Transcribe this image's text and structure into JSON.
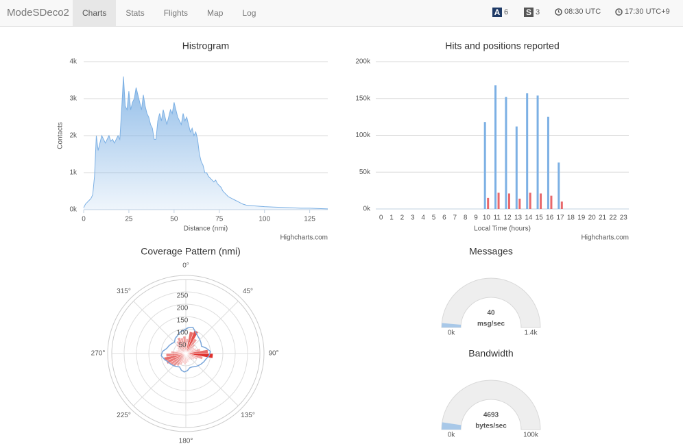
{
  "navbar": {
    "brand": "ModeSDeco2",
    "tabs": [
      "Charts",
      "Stats",
      "Flights",
      "Map",
      "Log"
    ],
    "status": [
      {
        "badge": "A",
        "count": "6"
      },
      {
        "badge": "S",
        "count": "3"
      }
    ],
    "clocks": [
      "08:30 UTC",
      "17:30 UTC+9"
    ]
  },
  "chart_data": [
    {
      "type": "area",
      "title": "Histrogram",
      "x_label": "Distance (nmi)",
      "y_label": "Contacts",
      "credits": "Highcharts.com",
      "color": "#7cb0e4",
      "x": [
        0,
        1,
        2,
        3,
        4,
        5,
        6,
        7,
        8,
        9,
        10,
        11,
        12,
        13,
        14,
        15,
        16,
        17,
        18,
        19,
        20,
        21,
        22,
        23,
        24,
        25,
        26,
        27,
        28,
        29,
        30,
        31,
        32,
        33,
        34,
        35,
        36,
        37,
        38,
        39,
        40,
        41,
        42,
        43,
        44,
        45,
        46,
        47,
        48,
        49,
        50,
        51,
        52,
        53,
        54,
        55,
        56,
        57,
        58,
        59,
        60,
        61,
        62,
        63,
        64,
        65,
        66,
        67,
        68,
        69,
        70,
        71,
        72,
        73,
        74,
        75,
        76,
        77,
        78,
        79,
        80,
        82,
        84,
        86,
        88,
        90,
        95,
        100,
        105,
        110,
        115,
        120,
        125,
        130,
        135
      ],
      "values": [
        50,
        150,
        200,
        250,
        300,
        400,
        900,
        2000,
        1600,
        1800,
        2000,
        1900,
        1800,
        1900,
        2000,
        1850,
        1900,
        1800,
        1900,
        2000,
        1900,
        2700,
        3600,
        2800,
        2700,
        3200,
        2700,
        2900,
        3000,
        3300,
        3100,
        2900,
        2700,
        3100,
        2800,
        2600,
        2500,
        2300,
        2200,
        1900,
        1900,
        2400,
        2600,
        2400,
        2700,
        2500,
        2300,
        2500,
        2700,
        2600,
        2900,
        2700,
        2500,
        2400,
        2300,
        2600,
        2400,
        2500,
        2300,
        2100,
        2200,
        2000,
        2100,
        1900,
        1500,
        1300,
        1200,
        1000,
        1000,
        900,
        850,
        800,
        750,
        800,
        700,
        650,
        600,
        500,
        450,
        400,
        350,
        300,
        250,
        200,
        150,
        120,
        100,
        80,
        70,
        60,
        50,
        40,
        40,
        30,
        20
      ],
      "xlim": [
        0,
        135
      ],
      "xticks": [
        0,
        25,
        50,
        75,
        100,
        125
      ],
      "ylim": [
        0,
        4000
      ],
      "yticks": [
        {
          "value": 0,
          "label": "0k"
        },
        {
          "value": 1000,
          "label": "1k"
        },
        {
          "value": 2000,
          "label": "2k"
        },
        {
          "value": 3000,
          "label": "3k"
        },
        {
          "value": 4000,
          "label": "4k"
        }
      ],
      "grid": true
    },
    {
      "type": "bar",
      "title": "Hits and positions reported",
      "x_label": "Local Time (hours)",
      "credits": "Highcharts.com",
      "categories": [
        "0",
        "1",
        "2",
        "3",
        "4",
        "5",
        "6",
        "7",
        "8",
        "9",
        "10",
        "11",
        "12",
        "13",
        "14",
        "15",
        "16",
        "17",
        "18",
        "19",
        "20",
        "21",
        "22",
        "23"
      ],
      "series": [
        {
          "color": "#7cb0e4",
          "values": [
            0,
            0,
            0,
            0,
            0,
            0,
            0,
            0,
            0,
            0,
            118000,
            168000,
            152000,
            112000,
            157000,
            154000,
            125000,
            63000,
            0,
            0,
            0,
            0,
            0,
            0
          ]
        },
        {
          "color": "#e8686b",
          "values": [
            0,
            0,
            0,
            0,
            0,
            0,
            0,
            0,
            0,
            0,
            15000,
            22000,
            21000,
            14000,
            22000,
            21000,
            18000,
            10000,
            0,
            0,
            0,
            0,
            0,
            0
          ]
        }
      ],
      "ylim": [
        0,
        200000
      ],
      "yticks": [
        {
          "value": 0,
          "label": "0k"
        },
        {
          "value": 50000,
          "label": "50k"
        },
        {
          "value": 100000,
          "label": "100k"
        },
        {
          "value": 150000,
          "label": "150k"
        },
        {
          "value": 200000,
          "label": "200k"
        }
      ],
      "grid": true
    },
    {
      "type": "polar",
      "title": "Coverage Pattern (nmi)",
      "angle_ticks": [
        {
          "value": 0,
          "label": "0°"
        },
        {
          "value": 45,
          "label": "45°"
        },
        {
          "value": 90,
          "label": "90°"
        },
        {
          "value": 135,
          "label": "135°"
        },
        {
          "value": 180,
          "label": "180°"
        },
        {
          "value": 225,
          "label": "225°"
        },
        {
          "value": 270,
          "label": "270°"
        },
        {
          "value": 315,
          "label": "315°"
        }
      ],
      "ylim": [
        0,
        300
      ],
      "yticks": [
        50,
        100,
        150,
        200,
        250
      ],
      "x": [
        0,
        10,
        20,
        30,
        40,
        50,
        60,
        70,
        80,
        90,
        100,
        110,
        120,
        130,
        140,
        150,
        160,
        170,
        180,
        190,
        200,
        210,
        220,
        230,
        240,
        250,
        260,
        270,
        280,
        290,
        300,
        310,
        320,
        330,
        340,
        350
      ],
      "series": [
        {
          "type": "column",
          "color": "#e0302c",
          "values": [
            60,
            90,
            100,
            70,
            50,
            40,
            45,
            60,
            90,
            110,
            70,
            50,
            40,
            35,
            30,
            30,
            35,
            40,
            45,
            40,
            50,
            60,
            70,
            75,
            85,
            90,
            80,
            60,
            40,
            35,
            40,
            50,
            60,
            70,
            65,
            70
          ]
        },
        {
          "type": "line",
          "color": "#7aa6da",
          "values": [
            105,
            110,
            95,
            85,
            80,
            75,
            70,
            85,
            100,
            95,
            85,
            80,
            75,
            70,
            65,
            60,
            60,
            70,
            75,
            70,
            60,
            65,
            70,
            75,
            80,
            90,
            100,
            95,
            80,
            75,
            70,
            65,
            75,
            80,
            90,
            95
          ]
        }
      ]
    },
    {
      "type": "gauge",
      "title": "Messages",
      "value": 40,
      "unit": "msg/sec",
      "ylim": [
        0,
        1400
      ],
      "yticks": [
        {
          "value": 0,
          "label": "0k"
        },
        {
          "value": 1400,
          "label": "1.4k"
        }
      ]
    },
    {
      "type": "gauge",
      "title": "Bandwidth",
      "value": 4693,
      "unit": "bytes/sec",
      "ylim": [
        0,
        100000
      ],
      "yticks": [
        {
          "value": 0,
          "label": "0k"
        },
        {
          "value": 100000,
          "label": "100k"
        }
      ]
    }
  ]
}
